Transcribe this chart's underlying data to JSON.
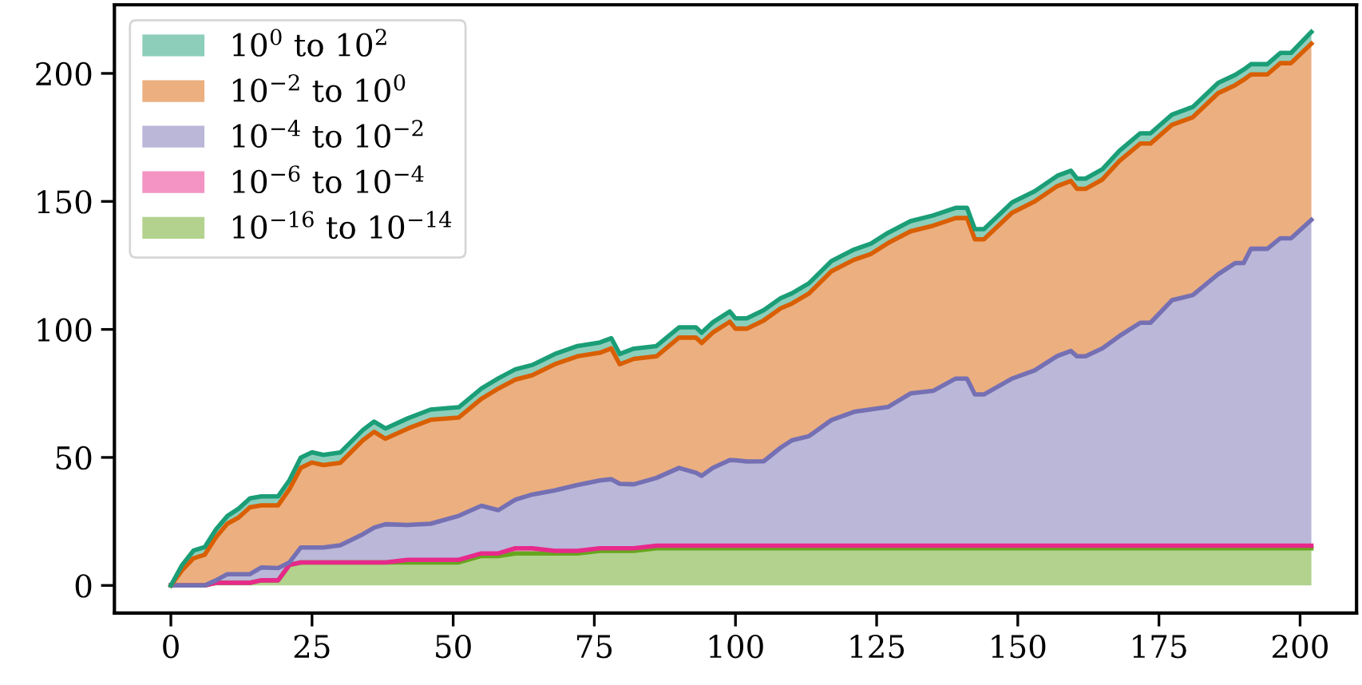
{
  "chart_data": {
    "type": "area",
    "stacked": true,
    "legend": "top left",
    "grid": false,
    "x": [
      0,
      2,
      4,
      6,
      8,
      10,
      12,
      14,
      16,
      19,
      21,
      23,
      25,
      27,
      30,
      34,
      36,
      38,
      42,
      46,
      51,
      55,
      58,
      61,
      64,
      68,
      72,
      76,
      78,
      79.5,
      82,
      86,
      90,
      93,
      94,
      96,
      99,
      100,
      102,
      105,
      108,
      110,
      113,
      117,
      121,
      124,
      127,
      131,
      135,
      139,
      141,
      142.4,
      144,
      149,
      153,
      157,
      159.4,
      160.5,
      162,
      165,
      168,
      171.7,
      173.5,
      177.3,
      181,
      185.5,
      188.5,
      190,
      191.3,
      194.2,
      196.5,
      198.4,
      202
    ],
    "series": [
      {
        "name": "10$^{−16}$ to 10$^{−14}$",
        "color": "#66a61e",
        "values": [
          0,
          0,
          0,
          0,
          1,
          1,
          1,
          1,
          2,
          2,
          8,
          9,
          9,
          9,
          9,
          9,
          9,
          9,
          9,
          9,
          9,
          11.5,
          11.5,
          12.5,
          12.5,
          12.5,
          12.5,
          13.5,
          13.5,
          13.5,
          13.5,
          14.5,
          14.5,
          14.5,
          14.5,
          14.5,
          14.5,
          14.5,
          14.5,
          14.5,
          14.5,
          14.5,
          14.5,
          14.5,
          14.5,
          14.5,
          14.5,
          14.5,
          14.5,
          14.5,
          14.5,
          14.5,
          14.5,
          14.5,
          14.5,
          14.5,
          14.5,
          14.5,
          14.5,
          14.5,
          14.5,
          14.5,
          14.5,
          14.5,
          14.5,
          14.5,
          14.5,
          14.5,
          14.5,
          14.5,
          14.5,
          14.5,
          14.5
        ]
      },
      {
        "name": "10$^{−6}$ to 10$^{−4}$",
        "color": "#e7298a",
        "values": [
          0,
          0,
          0,
          0,
          0,
          0,
          0,
          0,
          0,
          0,
          0,
          0,
          0,
          0,
          0,
          0,
          0,
          0,
          1,
          1,
          1,
          1,
          1,
          2,
          2,
          1,
          1,
          1,
          1,
          1,
          1,
          1,
          1,
          1,
          1,
          1,
          1,
          1,
          1,
          1,
          1,
          1,
          1,
          1,
          1,
          1,
          1,
          1,
          1,
          1,
          1,
          1,
          1,
          1,
          1,
          1,
          1,
          1,
          1,
          1,
          1,
          1,
          1,
          1,
          1,
          1,
          1,
          1,
          1,
          1,
          1,
          1,
          1
        ]
      },
      {
        "name": "10$^{−4}$ to 10$^{−2}$",
        "color": "#7570b3",
        "values": [
          0,
          0,
          0,
          0,
          1,
          3.4,
          3.4,
          3.4,
          5,
          4.8,
          1,
          5.8,
          5.8,
          5.8,
          6.7,
          11,
          13.6,
          14.9,
          13.6,
          14.1,
          17.2,
          18.6,
          16.9,
          19,
          21,
          23.6,
          25.7,
          26.5,
          27,
          25.2,
          25,
          26.5,
          30.4,
          28.5,
          27.3,
          30.4,
          33.5,
          33.4,
          32.9,
          33,
          38.3,
          41.2,
          42.8,
          49.1,
          52.3,
          53.3,
          54.2,
          59.5,
          60.5,
          65.3,
          65.3,
          59.1,
          59.1,
          65.3,
          68.5,
          74.1,
          76.1,
          74,
          74,
          77.1,
          81.9,
          87.1,
          87.1,
          95.9,
          97.9,
          106.1,
          110.4,
          110.4,
          116,
          116,
          120.1,
          120.1,
          127.3
        ]
      },
      {
        "name": "10$^{−2}$ to 10$^{0}$",
        "color": "#d95f02",
        "values": [
          0,
          6,
          10.6,
          12,
          16.9,
          19.7,
          22.1,
          26.1,
          24.3,
          24.5,
          28.6,
          31.1,
          33.2,
          32.2,
          32.2,
          36.7,
          37.4,
          33.4,
          37.7,
          40.6,
          38.4,
          41.8,
          47.5,
          46.9,
          46.6,
          49.3,
          50.3,
          49.9,
          51.1,
          46.7,
          49,
          47.5,
          50.9,
          52.8,
          51.9,
          52.9,
          54,
          51.4,
          51.9,
          55,
          54.4,
          53.4,
          55.7,
          58.1,
          59.4,
          60.7,
          64,
          63.3,
          64.5,
          62.7,
          62.7,
          60.6,
          60.6,
          64.8,
          66,
          66.4,
          66.4,
          65.4,
          65.4,
          66,
          68.4,
          70,
          70,
          68.5,
          69.5,
          70.7,
          69.5,
          71.6,
          68.1,
          68.1,
          68.4,
          68.4,
          68.8
        ]
      },
      {
        "name": "10$^{0}$ to 10$^{2}$",
        "color": "#1b9e77",
        "values": [
          0,
          2,
          3,
          3,
          3,
          3,
          3.5,
          3.5,
          3.5,
          3.5,
          3.5,
          4,
          4,
          4,
          4,
          4,
          4,
          4,
          4,
          4,
          4,
          4,
          4,
          4,
          4,
          4,
          4,
          4,
          4,
          4,
          4,
          4,
          4,
          4,
          4,
          4,
          4,
          4,
          4,
          4,
          4,
          4,
          4,
          4,
          4,
          4,
          4,
          4,
          4,
          4,
          4,
          4,
          4,
          4,
          4,
          4,
          4,
          4,
          4,
          4,
          4,
          4,
          4,
          4,
          4,
          4,
          4,
          4,
          4,
          4,
          4,
          4,
          4.6
        ]
      }
    ],
    "xlim": [
      -10,
      210
    ],
    "ylim": [
      -10.8,
      226.8
    ],
    "xticks": [
      0,
      25,
      50,
      75,
      100,
      125,
      150,
      175,
      200
    ],
    "yticks": [
      0,
      50,
      100,
      150,
      200
    ]
  }
}
